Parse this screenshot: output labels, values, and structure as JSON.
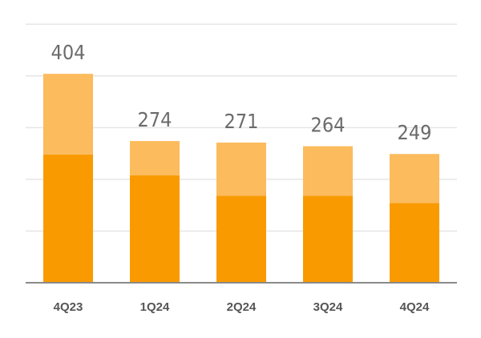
{
  "chart_data": {
    "type": "bar",
    "stacked": true,
    "categories": [
      "4Q23",
      "1Q24",
      "2Q24",
      "3Q24",
      "4Q24"
    ],
    "series": [
      {
        "values": [
          248,
          208,
          168,
          168,
          154
        ],
        "color": "#f99a00"
      },
      {
        "values": [
          156,
          66,
          103,
          96,
          95
        ],
        "color": "#fcbb5c"
      }
    ],
    "totals": [
      "404",
      "274",
      "271",
      "264",
      "249"
    ],
    "ylim": [
      0,
      500
    ],
    "grid": true,
    "legend": "none"
  }
}
